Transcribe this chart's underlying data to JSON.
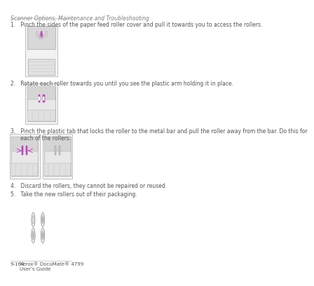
{
  "bg_color": "#ffffff",
  "header_text": "Scanner Options, Maintenance and Troubleshooting",
  "header_color": "#808080",
  "header_fontsize": 5.5,
  "footer_page": "9-164",
  "footer_product": "Xerox® DocuMate® 4799",
  "footer_guide": "User’s Guide",
  "footer_fontsize": 5.0,
  "step1_text": "1.   Pinch the sides of the paper feed roller cover and pull it towards you to access the rollers.",
  "step2_text": "2.   Rotate each roller towards you until you see the plastic arm holding it in place.",
  "step3_text": "3.   Pinch the plastic tab that locks the roller to the metal bar and pull the roller away from the bar. Do this for\n      each of the rollers.",
  "step4_text": "4.   Discard the rollers, they cannot be repaired or reused.",
  "step5_text": "5.   Take the new rollers out of their packaging.",
  "text_color": "#555555",
  "text_fontsize": 5.5,
  "line_color": "#aaaaaa",
  "highlight_color": "#cc44cc"
}
